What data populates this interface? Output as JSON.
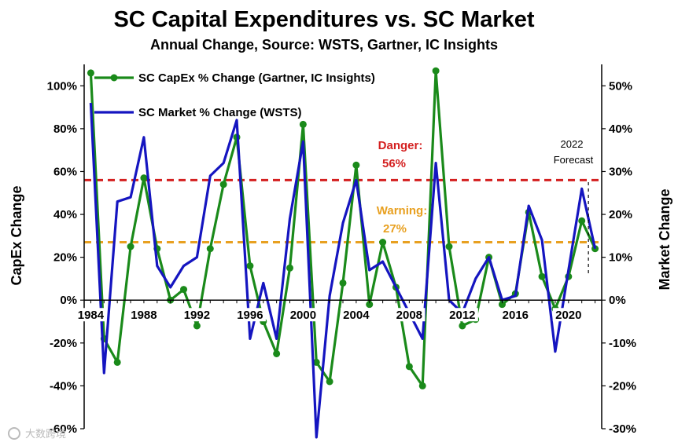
{
  "chart_data": {
    "type": "line",
    "title": "SC Capital Expenditures vs. SC Market",
    "subtitle": "Annual Change, Source: WSTS, Gartner, IC Insights",
    "ylabel_left": "CapEx Change",
    "ylabel_right": "Market Change",
    "ylim_left": [
      -60,
      110
    ],
    "ylim_right": [
      -30,
      55
    ],
    "xlim": [
      1983.5,
      2022.5
    ],
    "x_ticks": [
      1984,
      1988,
      1992,
      1996,
      2000,
      2004,
      2008,
      2012,
      2016,
      2020
    ],
    "left_ticks": [
      {
        "value": 100,
        "label": "100%"
      },
      {
        "value": 80,
        "label": "80%"
      },
      {
        "value": 60,
        "label": "60%"
      },
      {
        "value": 40,
        "label": "40%"
      },
      {
        "value": 20,
        "label": "20%"
      },
      {
        "value": 0,
        "label": "0%"
      },
      {
        "value": -20,
        "label": "-20%"
      },
      {
        "value": -40,
        "label": "-40%"
      },
      {
        "value": -60,
        "label": "-60%"
      }
    ],
    "right_ticks": [
      {
        "value": 50,
        "label": "50%"
      },
      {
        "value": 40,
        "label": "40%"
      },
      {
        "value": 30,
        "label": "30%"
      },
      {
        "value": 20,
        "label": "20%"
      },
      {
        "value": 10,
        "label": "10%"
      },
      {
        "value": 0,
        "label": "0%"
      },
      {
        "value": -10,
        "label": "-10%"
      },
      {
        "value": -20,
        "label": "-20%"
      },
      {
        "value": -30,
        "label": "-30%"
      }
    ],
    "x": [
      1984,
      1985,
      1986,
      1987,
      1988,
      1989,
      1990,
      1991,
      1992,
      1993,
      1994,
      1995,
      1996,
      1997,
      1998,
      1999,
      2000,
      2001,
      2002,
      2003,
      2004,
      2005,
      2006,
      2007,
      2008,
      2009,
      2010,
      2011,
      2012,
      2013,
      2014,
      2015,
      2016,
      2017,
      2018,
      2019,
      2020,
      2021,
      2022
    ],
    "series": [
      {
        "name": "SC CapEx % Change (Gartner, IC Insights)",
        "axis": "left",
        "color": "#1a8a1a",
        "markers": true,
        "values": [
          106,
          -18,
          -29,
          25,
          57,
          24,
          0,
          5,
          -12,
          24,
          54,
          76,
          16,
          -10,
          -25,
          15,
          82,
          -29,
          -38,
          8,
          63,
          -2,
          27,
          6,
          -31,
          -40,
          107,
          25,
          -12,
          -9,
          20,
          -2,
          3,
          41,
          11,
          -4,
          11,
          37,
          24
        ]
      },
      {
        "name": "SC Market % Change (WSTS)",
        "axis": "right",
        "color": "#1515c0",
        "markers": false,
        "values": [
          46,
          -17,
          23,
          24,
          38,
          8,
          3,
          8,
          10,
          29,
          32,
          42,
          -9,
          4,
          -9,
          19,
          37,
          -32,
          1,
          18,
          28,
          7,
          9,
          3,
          -3,
          -9,
          32,
          0,
          -3,
          5,
          10,
          0,
          1,
          22,
          14,
          -12,
          7,
          26,
          12
        ]
      }
    ],
    "reference_lines": [
      {
        "name": "danger",
        "label_line1": "Danger:",
        "label_line2": "56%",
        "value": 56,
        "axis": "left",
        "color": "#d42020"
      },
      {
        "name": "warning",
        "label_line1": "Warning:",
        "label_line2": "27%",
        "value": 27,
        "axis": "left",
        "color": "#e8a020"
      }
    ],
    "forecast": {
      "label_line1": "2022",
      "label_line2": "Forecast",
      "x": 2021.5
    }
  },
  "watermark": "大数跨境"
}
